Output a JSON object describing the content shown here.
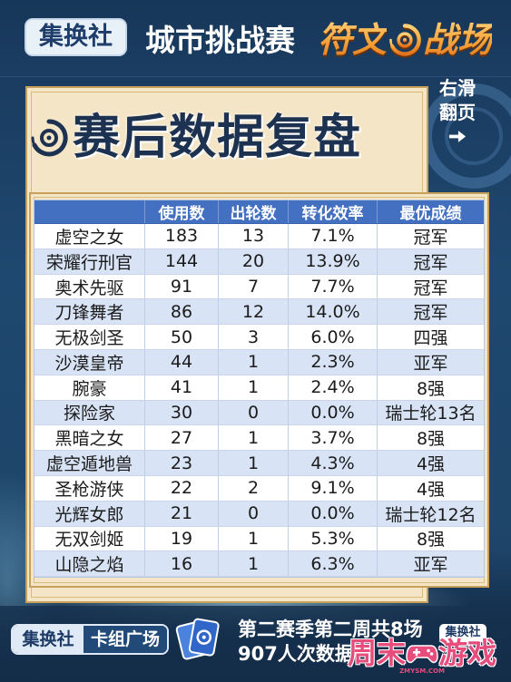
{
  "header": {
    "brand": "集换社",
    "event": "城市挑战赛",
    "game_logo_left": "符文",
    "game_logo_right": "战场"
  },
  "swipe_hint": {
    "line1": "右滑",
    "line2": "翻页"
  },
  "chart_data": {
    "type": "table",
    "title": "赛后数据复盘",
    "columns": [
      "",
      "使用数",
      "出轮数",
      "转化效率",
      "最优成绩"
    ],
    "rows": [
      [
        "虚空之女",
        183,
        13,
        "7.1%",
        "冠军"
      ],
      [
        "荣耀行刑官",
        144,
        20,
        "13.9%",
        "冠军"
      ],
      [
        "奥术先驱",
        91,
        7,
        "7.7%",
        "冠军"
      ],
      [
        "刀锋舞者",
        86,
        12,
        "14.0%",
        "冠军"
      ],
      [
        "无极剑圣",
        50,
        3,
        "6.0%",
        "四强"
      ],
      [
        "沙漠皇帝",
        44,
        1,
        "2.3%",
        "亚军"
      ],
      [
        "腕豪",
        41,
        1,
        "2.4%",
        "8强"
      ],
      [
        "探险家",
        30,
        0,
        "0.0%",
        "瑞士轮13名"
      ],
      [
        "黑暗之女",
        27,
        1,
        "3.7%",
        "8强"
      ],
      [
        "虚空遁地兽",
        23,
        1,
        "4.3%",
        "4强"
      ],
      [
        "圣枪游侠",
        22,
        2,
        "9.1%",
        "4强"
      ],
      [
        "光辉女郎",
        21,
        0,
        "0.0%",
        "瑞士轮12名"
      ],
      [
        "无双剑姬",
        19,
        1,
        "5.3%",
        "8强"
      ],
      [
        "山隐之焰",
        16,
        1,
        "6.3%",
        "亚军"
      ]
    ]
  },
  "footer": {
    "brand": "集换社",
    "section": "卡组广场",
    "summary_line1": "第二赛季第二周共8场",
    "summary_line2": "907人次数据",
    "brand_small": "集换社"
  },
  "watermark": {
    "text_left": "周末",
    "text_right": "游戏",
    "site": "ZMYSM.COM"
  },
  "icons": {
    "logo_emblem": "rune-swirl-icon",
    "title_icon": "rune-swirl-icon",
    "hint_icon": "arrow-right-icon",
    "footer_icon": "card-deck-icon",
    "watermark_icon": "gamepad-icon"
  },
  "colors": {
    "background": "#1b3f63",
    "panel": "#f3e5c6",
    "panel_border": "#c7a05a",
    "title_text": "#1d3150",
    "table_header": "#4470c2",
    "row_base": "#ffffff",
    "row_alt": "#d8e4f5",
    "logo_orange": "#f39a30",
    "watermark": "#e64c7c"
  }
}
